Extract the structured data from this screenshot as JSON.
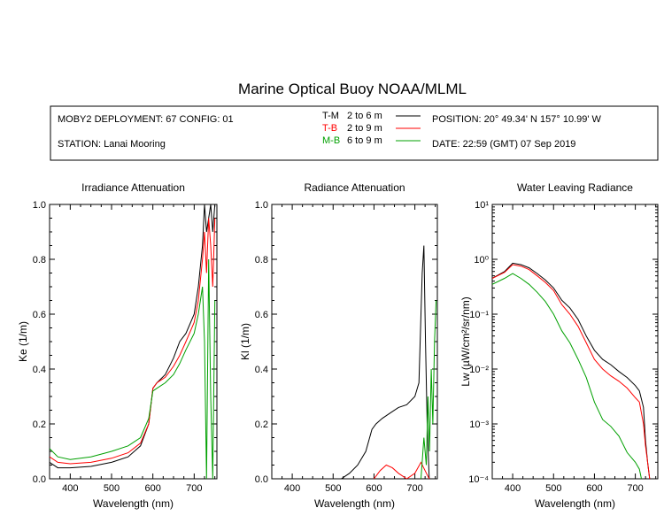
{
  "title": "Marine Optical Buoy NOAA/MLML",
  "info": {
    "deployment": "MOBY2 DEPLOYMENT: 67 CONFIG: 01",
    "station": "STATION: Lanai Mooring",
    "position": "POSITION: 20° 49.34' N   157° 10.99' W",
    "date": "DATE: 22:59 (GMT) 07 Sep 2019"
  },
  "legend": [
    {
      "code": "T-M",
      "range": "2 to 6  m",
      "color": "#000000"
    },
    {
      "code": "T-B",
      "range": "2 to 9  m",
      "color": "#ff0000"
    },
    {
      "code": "M-B",
      "range": "6 to 9  m",
      "color": "#00a000"
    }
  ],
  "chart_data": [
    {
      "type": "line",
      "title": "Irradiance Attenuation",
      "xlabel": "Wavelength (nm)",
      "ylabel": "Ke  (1/m)",
      "xlim": [
        350,
        755
      ],
      "ylim": [
        0,
        1
      ],
      "xticks": [
        "400",
        "500",
        "600",
        "700"
      ],
      "yticks": [
        "0.0",
        "0.2",
        "0.4",
        "0.6",
        "0.8",
        "1.0"
      ],
      "series": [
        {
          "name": "T-M",
          "color": "#000000",
          "x": [
            350,
            370,
            400,
            450,
            500,
            540,
            570,
            590,
            600,
            610,
            630,
            650,
            665,
            680,
            700,
            710,
            720,
            725,
            730,
            735,
            740,
            745,
            750
          ],
          "y": [
            0.06,
            0.04,
            0.04,
            0.045,
            0.06,
            0.08,
            0.12,
            0.2,
            0.33,
            0.35,
            0.38,
            0.44,
            0.5,
            0.53,
            0.6,
            0.7,
            0.85,
            1.0,
            0.9,
            0.95,
            1.0,
            0.9,
            1.0
          ]
        },
        {
          "name": "T-B",
          "color": "#ff0000",
          "x": [
            350,
            370,
            400,
            450,
            500,
            540,
            570,
            590,
            600,
            610,
            630,
            650,
            665,
            680,
            700,
            710,
            720,
            725,
            730,
            735,
            740,
            745,
            750
          ],
          "y": [
            0.08,
            0.06,
            0.055,
            0.06,
            0.075,
            0.095,
            0.13,
            0.2,
            0.33,
            0.35,
            0.37,
            0.41,
            0.45,
            0.5,
            0.57,
            0.65,
            0.8,
            0.9,
            0.75,
            0.95,
            0.85,
            0.7,
            0.95
          ]
        },
        {
          "name": "M-B",
          "color": "#00a000",
          "x": [
            350,
            370,
            400,
            450,
            500,
            540,
            570,
            590,
            600,
            610,
            630,
            650,
            665,
            680,
            700,
            710,
            720,
            725,
            730,
            735,
            740,
            745,
            750
          ],
          "y": [
            0.11,
            0.08,
            0.07,
            0.08,
            0.1,
            0.12,
            0.15,
            0.22,
            0.32,
            0.33,
            0.35,
            0.38,
            0.42,
            0.47,
            0.53,
            0.6,
            0.7,
            0.5,
            0.0,
            0.8,
            0.3,
            0.0,
            0.65
          ]
        }
      ]
    },
    {
      "type": "line",
      "title": "Radiance Attenuation",
      "xlabel": "Wavelength (nm)",
      "ylabel": "Kl  (1/m)",
      "xlim": [
        350,
        755
      ],
      "ylim": [
        0,
        1
      ],
      "xticks": [
        "400",
        "500",
        "600",
        "700"
      ],
      "yticks": [
        "0.0",
        "0.2",
        "0.4",
        "0.6",
        "0.8",
        "1.0"
      ],
      "series": [
        {
          "name": "T-M",
          "color": "#000000",
          "x": [
            520,
            540,
            560,
            580,
            595,
            605,
            620,
            640,
            660,
            680,
            700,
            710,
            715,
            718,
            722,
            726,
            730,
            735
          ],
          "y": [
            0.0,
            0.02,
            0.05,
            0.1,
            0.18,
            0.2,
            0.22,
            0.24,
            0.26,
            0.27,
            0.3,
            0.35,
            0.6,
            0.75,
            0.85,
            0.5,
            0.2,
            0.0
          ]
        },
        {
          "name": "T-B",
          "color": "#ff0000",
          "x": [
            600,
            615,
            630,
            645,
            660,
            680,
            700,
            715,
            725,
            735
          ],
          "y": [
            0.0,
            0.03,
            0.05,
            0.04,
            0.02,
            0.0,
            0.02,
            0.06,
            0.03,
            0.0
          ]
        },
        {
          "name": "M-B",
          "color": "#00a000",
          "x": [
            715,
            722,
            728,
            732,
            736,
            740,
            744,
            748,
            752
          ],
          "y": [
            0.0,
            0.15,
            0.05,
            0.3,
            0.1,
            0.4,
            0.2,
            0.5,
            0.65
          ]
        }
      ]
    },
    {
      "type": "line",
      "title": "Water Leaving Radiance",
      "xlabel": "Wavelength (nm)",
      "ylabel": "Lw  (µW/cm²/sr/nm)",
      "scale": "log",
      "xlim": [
        350,
        755
      ],
      "ylim": [
        0.0001,
        10
      ],
      "xticks": [
        "400",
        "500",
        "600",
        "700"
      ],
      "yticks": [
        "10⁻⁴",
        "10⁻³",
        "10⁻²",
        "10⁻¹",
        "10⁰",
        "10¹"
      ],
      "series": [
        {
          "name": "T-M",
          "color": "#000000",
          "x": [
            350,
            380,
            400,
            420,
            440,
            460,
            480,
            500,
            520,
            540,
            560,
            580,
            600,
            620,
            640,
            660,
            680,
            700,
            710,
            720,
            725,
            730,
            735
          ],
          "y": [
            0.45,
            0.6,
            0.85,
            0.8,
            0.7,
            0.55,
            0.42,
            0.3,
            0.18,
            0.13,
            0.08,
            0.04,
            0.022,
            0.015,
            0.012,
            0.009,
            0.007,
            0.005,
            0.004,
            0.002,
            0.0005,
            0.0002,
            0.0001
          ]
        },
        {
          "name": "T-B",
          "color": "#ff0000",
          "x": [
            350,
            380,
            400,
            420,
            440,
            460,
            480,
            500,
            520,
            540,
            560,
            580,
            600,
            620,
            640,
            660,
            680,
            700,
            710,
            720,
            725,
            730,
            735
          ],
          "y": [
            0.45,
            0.58,
            0.8,
            0.75,
            0.65,
            0.5,
            0.38,
            0.27,
            0.15,
            0.1,
            0.06,
            0.03,
            0.015,
            0.01,
            0.0075,
            0.006,
            0.0045,
            0.003,
            0.0025,
            0.001,
            0.0004,
            0.0002,
            0.0001
          ]
        },
        {
          "name": "M-B",
          "color": "#00a000",
          "x": [
            350,
            380,
            400,
            420,
            440,
            460,
            480,
            500,
            520,
            540,
            560,
            580,
            600,
            620,
            640,
            660,
            680,
            700,
            710,
            715
          ],
          "y": [
            0.35,
            0.45,
            0.55,
            0.45,
            0.35,
            0.25,
            0.17,
            0.1,
            0.05,
            0.03,
            0.015,
            0.007,
            0.0025,
            0.0012,
            0.0009,
            0.0006,
            0.0003,
            0.0002,
            0.00015,
            0.0001
          ]
        }
      ]
    }
  ]
}
